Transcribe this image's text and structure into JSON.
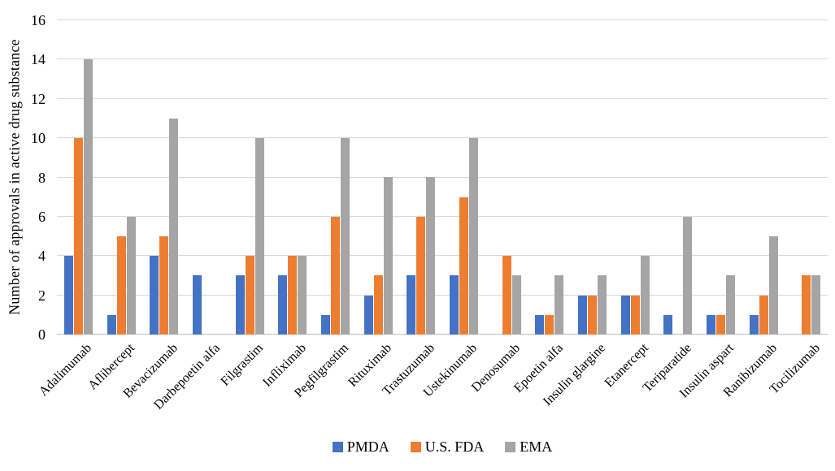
{
  "chart_data": {
    "type": "bar",
    "title": "",
    "xlabel": "",
    "ylabel": "Number of approvals in active drug substance",
    "ylim": [
      0,
      16
    ],
    "yticks": [
      0,
      2,
      4,
      6,
      8,
      10,
      12,
      14,
      16
    ],
    "grid": "horizontal",
    "legend_position": "bottom-center",
    "categories": [
      "Adalimumab",
      "Aflibercept",
      "Bevacizumab",
      "Darbepoetin alfa",
      "Filgrastim",
      "Infliximab",
      "Pegfilgrastim",
      "Rituximab",
      "Trastuzumab",
      "Ustekinumab",
      "Denosumab",
      "Epoetin alfa",
      "Insulin glargine",
      "Etanercept",
      "Teriparatide",
      "Insulin aspart",
      "Ranibizumab",
      "Tocilizumab"
    ],
    "series": [
      {
        "name": "PMDA",
        "color": "#4472C4",
        "values": [
          4,
          1,
          4,
          3,
          3,
          3,
          1,
          2,
          3,
          3,
          0,
          1,
          2,
          2,
          1,
          1,
          1,
          0
        ]
      },
      {
        "name": "U.S. FDA",
        "color": "#ED7D31",
        "values": [
          10,
          5,
          5,
          0,
          4,
          4,
          6,
          3,
          6,
          7,
          4,
          1,
          2,
          2,
          0,
          1,
          2,
          3
        ]
      },
      {
        "name": "EMA",
        "color": "#A5A5A5",
        "values": [
          14,
          6,
          11,
          0,
          10,
          4,
          10,
          8,
          8,
          10,
          3,
          3,
          3,
          4,
          6,
          3,
          5,
          3
        ]
      }
    ],
    "colors": {
      "gridline": "#D9D9D9",
      "axis_line": "#BFBFBF",
      "text": "#000000",
      "background": "#FFFFFF"
    }
  }
}
